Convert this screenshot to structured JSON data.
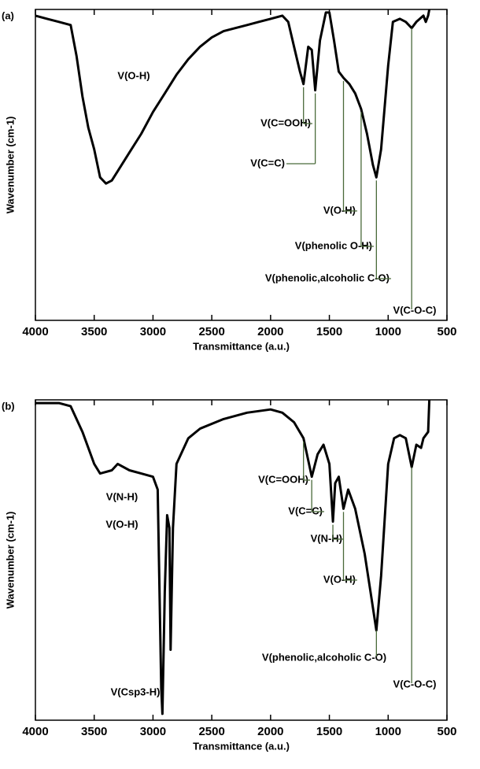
{
  "chart_data": [
    {
      "type": "line",
      "panel_label": "(a)",
      "xlabel": "Transmittance (a.u.)",
      "ylabel": "Wavenumber (cm-1)",
      "xlim": [
        4000,
        500
      ],
      "ylim": [
        0,
        100
      ],
      "xticks": [
        4000,
        3500,
        3000,
        2500,
        2000,
        1500,
        1000,
        500
      ],
      "color": "#000000",
      "annotation_color": "#4a6a3a",
      "x": [
        4000,
        3900,
        3800,
        3700,
        3650,
        3600,
        3550,
        3500,
        3450,
        3400,
        3350,
        3300,
        3200,
        3100,
        3000,
        2900,
        2800,
        2700,
        2600,
        2500,
        2400,
        2300,
        2200,
        2100,
        2000,
        1900,
        1850,
        1800,
        1750,
        1720,
        1680,
        1650,
        1620,
        1580,
        1530,
        1500,
        1460,
        1420,
        1380,
        1330,
        1280,
        1230,
        1180,
        1130,
        1100,
        1060,
        1000,
        960,
        900,
        850,
        800,
        760,
        700,
        680,
        660,
        650
      ],
      "values": [
        98,
        97,
        96,
        95,
        85,
        72,
        62,
        55,
        46,
        44,
        45,
        48,
        54,
        60,
        67,
        73,
        79,
        84,
        88,
        91,
        93,
        94,
        95,
        96,
        97,
        98,
        96,
        88,
        80,
        76,
        88,
        87,
        74,
        90,
        99,
        99,
        90,
        80,
        78,
        76,
        73,
        68,
        60,
        50,
        46,
        55,
        82,
        96,
        97,
        96,
        94,
        96,
        98,
        96,
        98,
        100
      ],
      "annotations": [
        {
          "text": "V(O-H)"
        },
        {
          "text": "V(C=OOH)",
          "x": 1720
        },
        {
          "text": "V(C=C)",
          "x": 1620
        },
        {
          "text": "V(O-H)",
          "x": 1380
        },
        {
          "text": "V(phenolic O-H)",
          "x": 1230
        },
        {
          "text": "V(phenolic,alcoholic C-O)",
          "x": 1100
        },
        {
          "text": "V(C-O-C)",
          "x": 800
        }
      ]
    },
    {
      "type": "line",
      "panel_label": "(b)",
      "xlabel": "Transmittance (a.u.)",
      "ylabel": "Wavenumber (cm-1)",
      "xlim": [
        4000,
        500
      ],
      "ylim": [
        0,
        100
      ],
      "xticks": [
        4000,
        3500,
        3000,
        2500,
        2000,
        1500,
        1000,
        500
      ],
      "color": "#000000",
      "annotation_color": "#4a6a3a",
      "x": [
        4000,
        3800,
        3700,
        3600,
        3500,
        3450,
        3350,
        3300,
        3200,
        3100,
        3000,
        2960,
        2930,
        2920,
        2900,
        2880,
        2860,
        2850,
        2830,
        2800,
        2700,
        2600,
        2400,
        2200,
        2000,
        1900,
        1800,
        1720,
        1650,
        1600,
        1550,
        1500,
        1470,
        1450,
        1420,
        1380,
        1340,
        1280,
        1200,
        1150,
        1100,
        1060,
        1000,
        950,
        900,
        850,
        800,
        760,
        720,
        700,
        660,
        650
      ],
      "values": [
        99,
        99,
        98,
        90,
        80,
        77,
        78,
        80,
        78,
        77,
        76,
        72,
        10,
        2,
        40,
        64,
        60,
        22,
        60,
        80,
        88,
        91,
        94,
        96,
        97,
        96,
        93,
        88,
        76,
        83,
        86,
        80,
        62,
        74,
        76,
        66,
        72,
        66,
        52,
        40,
        28,
        45,
        80,
        88,
        89,
        88,
        79,
        86,
        85,
        88,
        90,
        100
      ],
      "annotations": [
        {
          "text": "V(N-H)"
        },
        {
          "text": "V(O-H)"
        },
        {
          "text": "V(Csp3-H)"
        },
        {
          "text": "V(C=OOH)",
          "x": 1720
        },
        {
          "text": "V(C=C)",
          "x": 1650
        },
        {
          "text": "V(N-H)",
          "x": 1470
        },
        {
          "text": "V(O-H)",
          "x": 1380
        },
        {
          "text": "V(phenolic,alcoholic C-O)",
          "x": 1100
        },
        {
          "text": "V(C-O-C)",
          "x": 800
        }
      ]
    }
  ]
}
